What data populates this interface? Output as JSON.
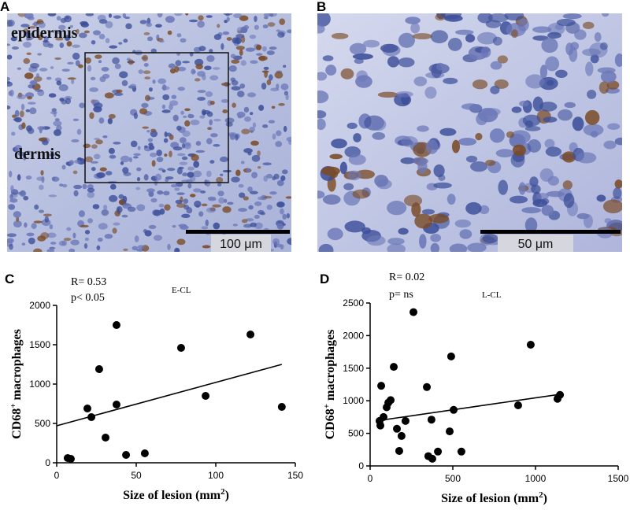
{
  "panels": {
    "A": {
      "letter": "A",
      "labels": [
        "epidermis",
        "dermis"
      ],
      "scale_bar": "100 μm"
    },
    "B": {
      "letter": "B",
      "scale_bar": "50 μm"
    }
  },
  "chart_data": [
    {
      "type": "scatter",
      "panel": "C",
      "annotations": [
        "R= 0.53",
        "p< 0.05",
        "E-CL"
      ],
      "xlabel": [
        "Size of lesion (mm",
        "2",
        ")"
      ],
      "ylabel": [
        "CD68",
        "+",
        " macrophages"
      ],
      "xlim": [
        0,
        150
      ],
      "xticks": [
        0,
        50,
        100,
        150
      ],
      "ylim": [
        0,
        2000
      ],
      "yticks": [
        0,
        500,
        1000,
        1500,
        2000
      ],
      "color": "#000000",
      "x": [
        6.9,
        8.9,
        19.3,
        21.8,
        26.7,
        30.7,
        37.6,
        37.6,
        43.6,
        55.4,
        78.2,
        93.6,
        121.8,
        141.5
      ],
      "values": [
        60,
        50,
        690,
        580,
        1190,
        320,
        1750,
        740,
        100,
        120,
        1460,
        850,
        1630,
        710
      ],
      "trend_line": {
        "x": [
          0,
          141.5
        ],
        "values": [
          470,
          1250
        ]
      }
    },
    {
      "type": "scatter",
      "panel": "D",
      "annotations": [
        "R= 0.02",
        "p= ns",
        "L-CL"
      ],
      "xlabel": [
        "Size of lesion (mm",
        "2",
        ")"
      ],
      "ylabel": [
        "CD68",
        "+",
        " macrophages"
      ],
      "xlim": [
        0,
        1500
      ],
      "xticks": [
        0,
        500,
        1000,
        1500
      ],
      "ylim": [
        0,
        2500
      ],
      "yticks": [
        0,
        500,
        1000,
        1500,
        2000,
        2500
      ],
      "color": "#000000",
      "x": [
        57,
        62,
        67,
        81,
        100,
        110,
        124,
        143,
        162,
        176,
        190,
        214,
        262,
        343,
        352,
        371,
        376,
        410,
        481,
        490,
        505,
        552,
        895,
        971,
        1133,
        1148
      ],
      "values": [
        690,
        620,
        1230,
        750,
        900,
        970,
        1010,
        1520,
        570,
        230,
        460,
        690,
        2360,
        1210,
        150,
        710,
        110,
        220,
        530,
        1680,
        860,
        220,
        930,
        1860,
        1030,
        1090
      ],
      "trend_line": {
        "x": [
          61,
          1150
        ],
        "values": [
          700,
          1100
        ]
      }
    }
  ]
}
